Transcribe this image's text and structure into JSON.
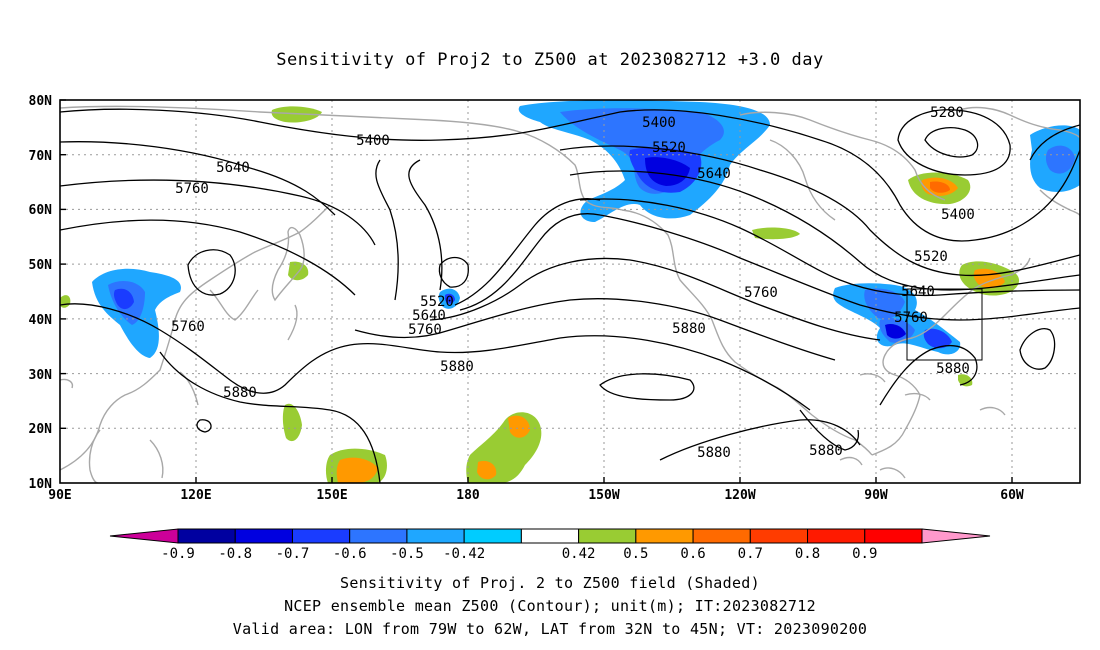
{
  "title": "Sensitivity of Proj2 to Z500 at 2023082712 +3.0 day",
  "lat_ticks": [
    "80N",
    "70N",
    "60N",
    "50N",
    "40N",
    "30N",
    "20N",
    "10N"
  ],
  "lon_ticks": [
    "90E",
    "120E",
    "150E",
    "180",
    "150W",
    "120W",
    "90W",
    "60W"
  ],
  "contour_labels": {
    "c5280": "5280",
    "c5400a": "5400",
    "c5400b": "5400",
    "c5400c": "5400",
    "c5520a": "5520",
    "c5520b": "5520",
    "c5520c": "5520",
    "c5640a": "5640",
    "c5640b": "5640",
    "c5640c": "5640",
    "c5640d": "5640",
    "c5760a": "5760",
    "c5760b": "5760",
    "c5760c": "5760",
    "c5760d": "5760",
    "c5760e": "5760",
    "c5880a": "5880",
    "c5880b": "5880",
    "c5880c": "5880",
    "c5880d": "5880",
    "c5880e": "5880",
    "c5880f": "5880"
  },
  "colorbar": {
    "labels": [
      "-0.9",
      "-0.8",
      "-0.7",
      "-0.6",
      "-0.5",
      "-0.42",
      "0.42",
      "0.5",
      "0.6",
      "0.7",
      "0.8",
      "0.9"
    ],
    "colors": [
      "#cc0099",
      "#0000a0",
      "#0000e0",
      "#1a3cff",
      "#2d75ff",
      "#1fa7ff",
      "#00ccff",
      "#ffffff",
      "#99cc33",
      "#ff9900",
      "#ff6a00",
      "#ff3c00",
      "#ff1a00",
      "#ff0000",
      "#ff99cc"
    ]
  },
  "captions": {
    "line1": "Sensitivity of Proj. 2 to Z500 field (Shaded)",
    "line2": "NCEP ensemble mean Z500 (Contour); unit(m); IT:2023082712",
    "line3": "Valid area: LON from 79W to 62W, LAT from 32N to 45N; VT: 2023090200"
  }
}
